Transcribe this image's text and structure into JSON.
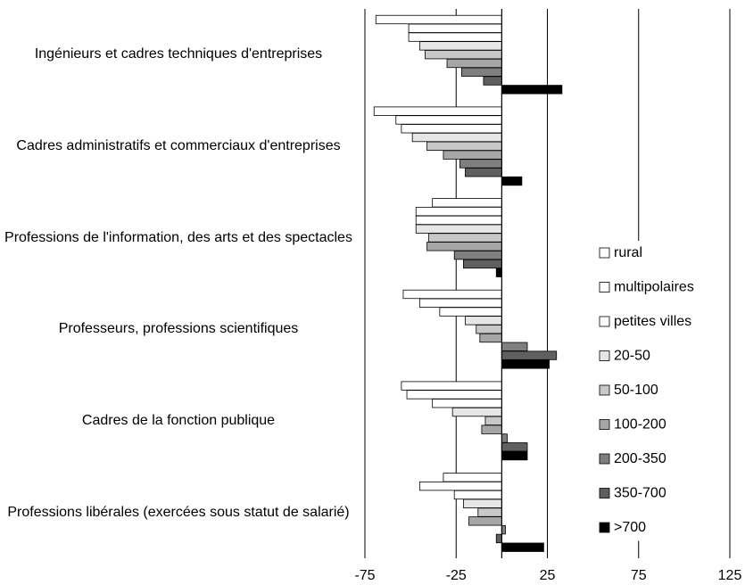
{
  "chart_data": {
    "type": "hbar",
    "categories": [
      "Ingénieurs et cadres techniques d'entreprises",
      "Cadres administratifs et commerciaux d'entreprises",
      "Professions de l'information, des arts et des spectacles",
      "Professeurs, professions scientifiques",
      "Cadres de la fonction publique",
      "Professions libérales (exercées sous statut de salarié)"
    ],
    "series": [
      {
        "name": "rural",
        "color": "#ffffff",
        "values": [
          -69,
          -70,
          -38,
          -54,
          -55,
          -32
        ]
      },
      {
        "name": "multipolaires",
        "color": "#ffffff",
        "values": [
          -51,
          -58,
          -47,
          -45,
          -52,
          -45
        ]
      },
      {
        "name": "petites villes",
        "color": "#ffffff",
        "values": [
          -51,
          -55,
          -47,
          -34,
          -38,
          -26
        ]
      },
      {
        "name": "20-50",
        "color": "#e6e6e6",
        "values": [
          -45,
          -49,
          -47,
          -20,
          -27,
          -21
        ]
      },
      {
        "name": "50-100",
        "color": "#c8c8c8",
        "values": [
          -42,
          -41,
          -40,
          -14,
          -9,
          -13
        ]
      },
      {
        "name": "100-200",
        "color": "#a6a6a6",
        "values": [
          -30,
          -32,
          -41,
          -12,
          -11,
          -18
        ]
      },
      {
        "name": "200-350",
        "color": "#7f7f7f",
        "values": [
          -22,
          -23,
          -26,
          14,
          3,
          2
        ]
      },
      {
        "name": "350-700",
        "color": "#5f5f5f",
        "values": [
          -10,
          -20,
          -21,
          30,
          14,
          -3
        ]
      },
      {
        "name": ">700",
        "color": "#000000",
        "values": [
          33,
          11,
          -3,
          26,
          14,
          23
        ]
      }
    ],
    "xlim": [
      -75,
      125
    ],
    "xticks": [
      -75,
      -25,
      25,
      75,
      125
    ],
    "grid": true
  }
}
